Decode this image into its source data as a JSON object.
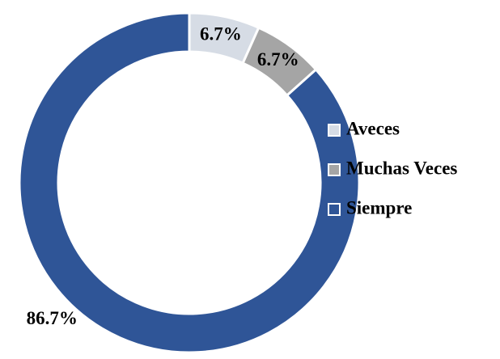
{
  "chart_data": {
    "type": "donut",
    "categories": [
      "Aveces",
      "Muchas Veces",
      "Siempre"
    ],
    "values": [
      6.7,
      6.7,
      86.7
    ],
    "value_labels": [
      "6.7%",
      "6.7%",
      "86.7%"
    ],
    "colors": [
      "#d6dce5",
      "#a5a5a5",
      "#2f5597"
    ],
    "legend": "right"
  }
}
